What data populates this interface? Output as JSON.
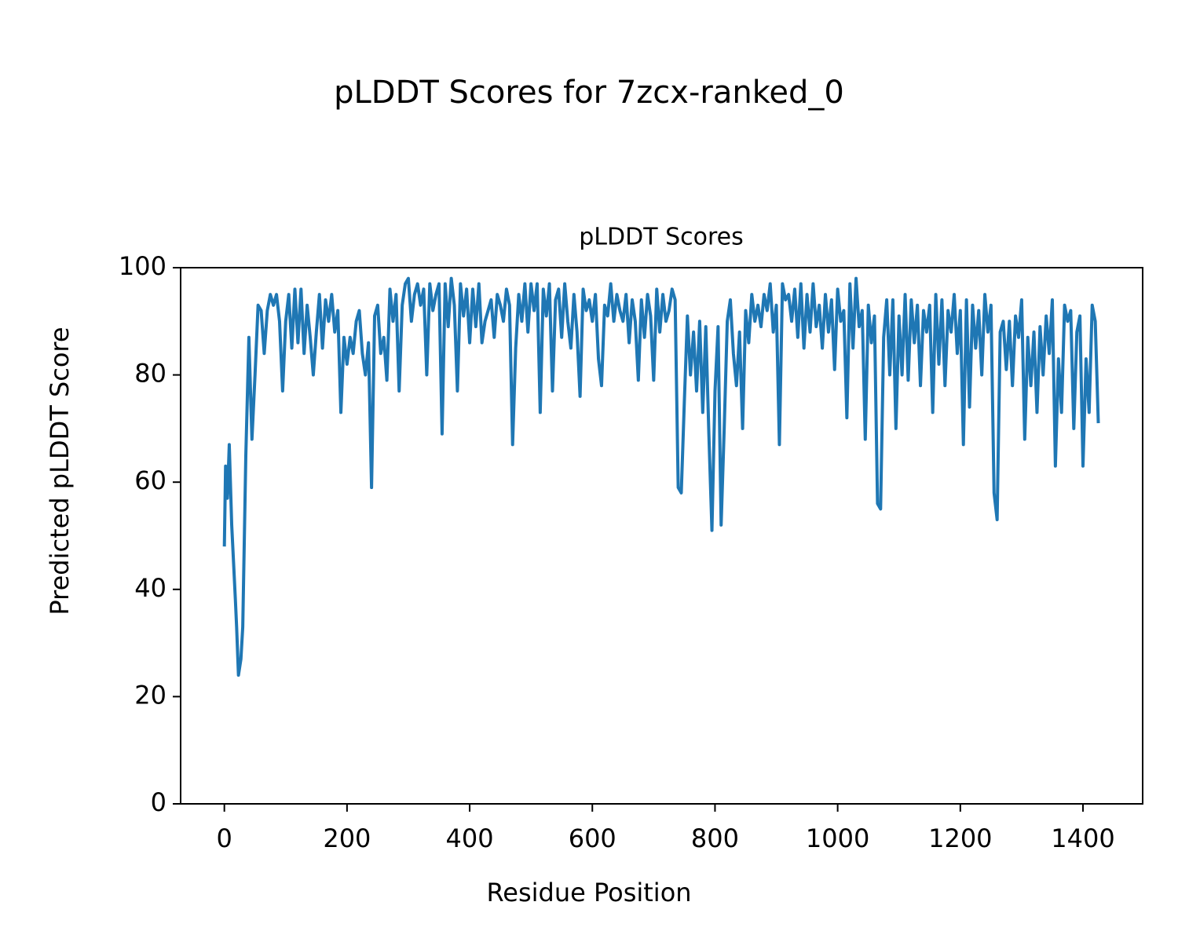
{
  "chart_data": {
    "type": "line",
    "suptitle": "pLDDT Scores for 7zcx-ranked_0",
    "title": "pLDDT Scores",
    "xlabel": "Residue Position",
    "ylabel": "Predicted pLDDT Score",
    "xlim": [
      -71.3,
      1497.3
    ],
    "ylim": [
      0,
      100
    ],
    "xticks": [
      0,
      200,
      400,
      600,
      800,
      1000,
      1200,
      1400
    ],
    "yticks": [
      0,
      20,
      40,
      60,
      80,
      100
    ],
    "x": [
      0,
      2,
      5,
      8,
      12,
      15,
      18,
      20,
      23,
      27,
      30,
      35,
      40,
      45,
      50,
      55,
      60,
      65,
      70,
      75,
      80,
      85,
      90,
      95,
      100,
      105,
      110,
      115,
      120,
      125,
      130,
      135,
      140,
      145,
      150,
      155,
      160,
      165,
      170,
      175,
      180,
      185,
      190,
      195,
      200,
      205,
      210,
      215,
      220,
      225,
      230,
      235,
      240,
      245,
      250,
      255,
      260,
      265,
      270,
      275,
      280,
      285,
      290,
      295,
      300,
      305,
      310,
      315,
      320,
      325,
      330,
      335,
      340,
      345,
      350,
      355,
      360,
      365,
      370,
      375,
      380,
      385,
      390,
      395,
      400,
      405,
      410,
      415,
      420,
      425,
      430,
      435,
      440,
      445,
      450,
      455,
      460,
      465,
      470,
      475,
      480,
      485,
      490,
      495,
      500,
      505,
      510,
      515,
      520,
      525,
      530,
      535,
      540,
      545,
      550,
      555,
      560,
      565,
      570,
      575,
      580,
      585,
      590,
      595,
      600,
      605,
      610,
      615,
      620,
      625,
      630,
      635,
      640,
      645,
      650,
      655,
      660,
      665,
      670,
      675,
      680,
      685,
      690,
      695,
      700,
      705,
      710,
      715,
      720,
      725,
      730,
      735,
      740,
      745,
      750,
      755,
      760,
      765,
      770,
      775,
      780,
      785,
      790,
      795,
      800,
      805,
      810,
      815,
      820,
      825,
      830,
      835,
      840,
      845,
      850,
      855,
      860,
      865,
      870,
      875,
      880,
      885,
      890,
      895,
      900,
      905,
      910,
      915,
      920,
      925,
      930,
      935,
      940,
      945,
      950,
      955,
      960,
      965,
      970,
      975,
      980,
      985,
      990,
      995,
      1000,
      1005,
      1010,
      1015,
      1020,
      1025,
      1030,
      1035,
      1040,
      1045,
      1050,
      1055,
      1060,
      1065,
      1070,
      1075,
      1080,
      1085,
      1090,
      1095,
      1100,
      1105,
      1110,
      1115,
      1120,
      1125,
      1130,
      1135,
      1140,
      1145,
      1150,
      1155,
      1160,
      1165,
      1170,
      1175,
      1180,
      1185,
      1190,
      1195,
      1200,
      1205,
      1210,
      1215,
      1220,
      1225,
      1230,
      1235,
      1240,
      1245,
      1250,
      1255,
      1260,
      1265,
      1270,
      1275,
      1280,
      1285,
      1290,
      1295,
      1300,
      1305,
      1310,
      1315,
      1320,
      1325,
      1330,
      1335,
      1340,
      1345,
      1350,
      1355,
      1360,
      1365,
      1370,
      1375,
      1380,
      1385,
      1390,
      1395,
      1400,
      1405,
      1410,
      1415,
      1420,
      1425
    ],
    "series": [
      {
        "color": "#1f77b4",
        "values": [
          48,
          63,
          57,
          67,
          52,
          45,
          38,
          33,
          24,
          27,
          33,
          65,
          87,
          68,
          80,
          93,
          92,
          84,
          92,
          95,
          93,
          95,
          90,
          77,
          90,
          95,
          85,
          96,
          86,
          96,
          84,
          93,
          87,
          80,
          88,
          95,
          85,
          94,
          90,
          95,
          88,
          92,
          73,
          87,
          82,
          87,
          84,
          90,
          92,
          84,
          80,
          86,
          59,
          91,
          93,
          84,
          87,
          79,
          96,
          90,
          95,
          77,
          93,
          97,
          98,
          90,
          95,
          97,
          93,
          96,
          80,
          97,
          92,
          95,
          97,
          69,
          97,
          89,
          98,
          93,
          77,
          97,
          91,
          96,
          86,
          96,
          89,
          97,
          86,
          90,
          92,
          94,
          87,
          95,
          93,
          90,
          96,
          93,
          67,
          85,
          95,
          90,
          97,
          88,
          97,
          92,
          97,
          73,
          96,
          91,
          97,
          77,
          94,
          96,
          87,
          97,
          90,
          85,
          95,
          88,
          76,
          96,
          92,
          94,
          90,
          95,
          83,
          78,
          93,
          91,
          97,
          90,
          95,
          92,
          90,
          95,
          86,
          94,
          90,
          79,
          94,
          87,
          95,
          91,
          79,
          96,
          88,
          95,
          90,
          92,
          96,
          94,
          59,
          58,
          75,
          91,
          80,
          88,
          77,
          90,
          73,
          89,
          69,
          51,
          77,
          89,
          52,
          70,
          90,
          94,
          84,
          78,
          88,
          70,
          92,
          86,
          95,
          90,
          93,
          89,
          95,
          92,
          97,
          88,
          93,
          67,
          97,
          94,
          95,
          90,
          96,
          87,
          97,
          85,
          95,
          88,
          97,
          89,
          93,
          85,
          95,
          88,
          94,
          81,
          96,
          90,
          92,
          72,
          97,
          85,
          98,
          89,
          92,
          68,
          93,
          86,
          91,
          56,
          55,
          87,
          94,
          80,
          94,
          70,
          91,
          80,
          95,
          79,
          94,
          86,
          93,
          78,
          92,
          88,
          93,
          73,
          95,
          82,
          94,
          78,
          92,
          88,
          95,
          84,
          92,
          67,
          94,
          74,
          93,
          85,
          92,
          80,
          95,
          88,
          93,
          58,
          53,
          88,
          90,
          81,
          90,
          78,
          91,
          87,
          94,
          68,
          87,
          78,
          88,
          73,
          89,
          80,
          91,
          84,
          94,
          63,
          83,
          73,
          93,
          90,
          92,
          70,
          88,
          91,
          63,
          83,
          73,
          93,
          90,
          71
        ]
      }
    ]
  }
}
